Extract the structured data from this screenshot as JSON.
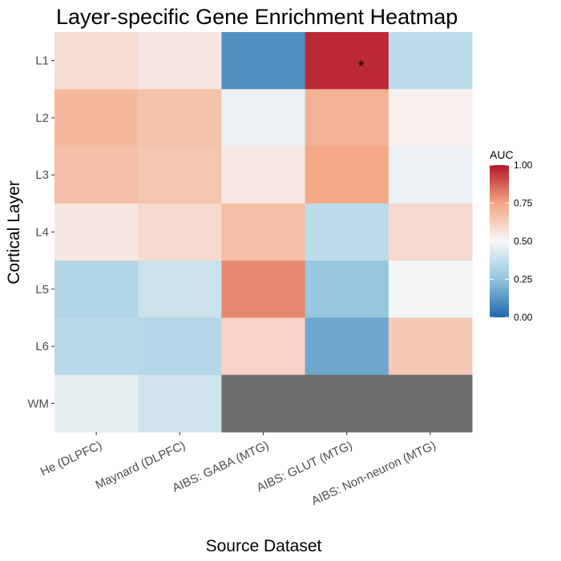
{
  "chart_data": {
    "type": "heatmap",
    "title": "Layer-specific Gene Enrichment Heatmap",
    "xlabel": "Source Dataset",
    "ylabel": "Cortical Layer",
    "x_categories": [
      "He (DLPFC)",
      "Maynard (DLPFC)",
      "AIBS: GABA (MTG)",
      "AIBS: GLUT (MTG)",
      "AIBS: Non-neuron (MTG)"
    ],
    "y_categories": [
      "L1",
      "L2",
      "L3",
      "L4",
      "L5",
      "L6",
      "WM"
    ],
    "values": [
      [
        0.58,
        0.55,
        0.11,
        0.97,
        0.36
      ],
      [
        0.69,
        0.66,
        0.47,
        0.71,
        0.52
      ],
      [
        0.67,
        0.65,
        0.54,
        0.74,
        0.47
      ],
      [
        0.55,
        0.59,
        0.67,
        0.36,
        0.59
      ],
      [
        0.33,
        0.39,
        0.8,
        0.26,
        0.49
      ],
      [
        0.35,
        0.34,
        0.61,
        0.17,
        0.64
      ],
      [
        0.46,
        0.4,
        null,
        null,
        null
      ]
    ],
    "annotations": [
      {
        "row": "L1",
        "col": "AIBS: GLUT (MTG)",
        "text": "*"
      }
    ],
    "legend": {
      "title": "AUC",
      "ticks": [
        "1.00",
        "0.75",
        "0.50",
        "0.25",
        "0.00"
      ],
      "range": [
        0,
        1
      ],
      "placement": "right"
    },
    "colors": {
      "low": "#2166ac",
      "mid": "#f7f7f7",
      "high": "#b2182b",
      "missing": "#6e6e6e"
    }
  }
}
